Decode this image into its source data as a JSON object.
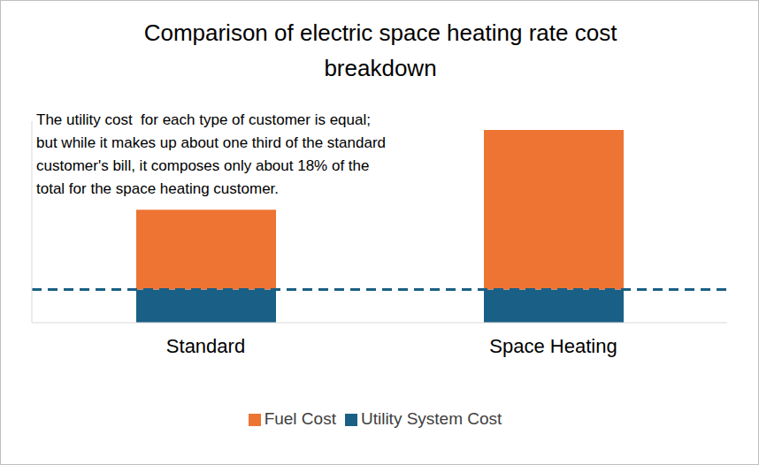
{
  "chart_data": {
    "type": "bar",
    "title": "Comparison of electric space heating rate cost breakdown",
    "annotation": [
      "The utility cost  for each type of customer is equal;",
      "but while it makes up about one third of the standard",
      "customer's bill, it composes only about 18% of the",
      "total for the space heating customer."
    ],
    "categories": [
      "Standard",
      "Space Heating"
    ],
    "series": [
      {
        "name": "Utility System Cost",
        "color": "#1a5f85",
        "values": [
          41,
          41
        ]
      },
      {
        "name": "Fuel Cost",
        "color": "#ed7433",
        "values": [
          99,
          198
        ]
      }
    ],
    "stacked": true,
    "ylim": [
      0,
      250
    ],
    "yticks": [
      0
    ],
    "tick_labels": "x",
    "legend": "bottom"
  }
}
